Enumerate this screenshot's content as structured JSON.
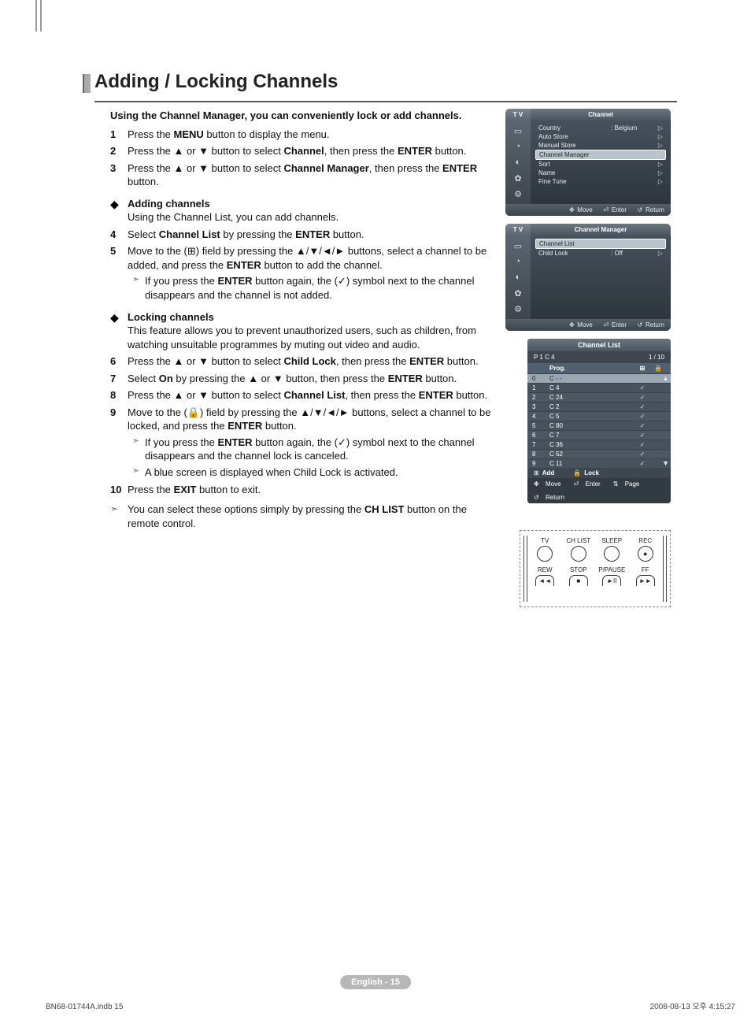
{
  "title": "Adding / Locking Channels",
  "intro": "Using the Channel Manager, you can conveniently lock or add channels.",
  "steps": {
    "s1": {
      "num": "1",
      "text": "Press the <strong>MENU</strong> button to display the menu."
    },
    "s2": {
      "num": "2",
      "text": "Press the ▲ or ▼ button to select <strong>Channel</strong>, then press the <strong>ENTER</strong> button."
    },
    "s3": {
      "num": "3",
      "text": "Press the ▲ or ▼ button to select <strong>Channel Manager</strong>, then press the <strong>ENTER</strong> button."
    }
  },
  "section_add": {
    "heading": "Adding channels",
    "body": "Using the Channel List, you can add channels."
  },
  "steps2": {
    "s4": {
      "num": "4",
      "text": "Select <strong>Channel List</strong> by pressing the <strong>ENTER</strong> button."
    },
    "s5": {
      "num": "5",
      "text": "Move to the (⊞) field by pressing the ▲/▼/◄/► buttons, select a channel to be added, and press the <strong>ENTER</strong> button to add the channel.",
      "sub1": "If you press the <strong>ENTER</strong> button again, the (✓) symbol next to the channel disappears and the channel is not added."
    }
  },
  "section_lock": {
    "heading": "Locking channels",
    "body": "This feature allows you to prevent unauthorized users, such as children, from watching unsuitable programmes by muting out video and audio."
  },
  "steps3": {
    "s6": {
      "num": "6",
      "text": "Press the ▲ or ▼ button to select <strong>Child Lock</strong>, then press the <strong>ENTER</strong> button."
    },
    "s7": {
      "num": "7",
      "text": "Select <strong>On</strong> by pressing the ▲ or ▼ button, then press the <strong>ENTER</strong> button."
    },
    "s8": {
      "num": "8",
      "text": "Press the ▲ or ▼ button to select <strong>Channel List</strong>, then press the <strong>ENTER</strong> button."
    },
    "s9": {
      "num": "9",
      "text": "Move to the (🔒) field by pressing the ▲/▼/◄/► buttons, select a channel to be locked, and press the <strong>ENTER</strong> button.",
      "sub1": "If you press the <strong>ENTER</strong> button again, the (✓) symbol next to the channel disappears and the channel lock is canceled.",
      "sub2": "A blue screen is displayed when Child Lock is activated."
    },
    "s10": {
      "num": "10",
      "text": "Press the <strong>EXIT</strong> button to exit."
    }
  },
  "tip": "You can select these options simply by pressing the <strong>CH LIST</strong> button on the remote control.",
  "osd1": {
    "tv": "T V",
    "title": "Channel",
    "rows": [
      {
        "k": "Country",
        "v": ": Belgium",
        "ar": "▷"
      },
      {
        "k": "Auto Store",
        "v": "",
        "ar": "▷"
      },
      {
        "k": "Manual Store",
        "v": "",
        "ar": "▷"
      },
      {
        "k": "Channel Manager",
        "v": "",
        "ar": "▷",
        "sel": true
      },
      {
        "k": "Sort",
        "v": "",
        "ar": "▷"
      },
      {
        "k": "Name",
        "v": "",
        "ar": "▷"
      },
      {
        "k": "Fine Tune",
        "v": "",
        "ar": "▷"
      }
    ],
    "foot": {
      "move": "Move",
      "enter": "Enter",
      "return": "Return"
    }
  },
  "osd2": {
    "tv": "T V",
    "title": "Channel Manager",
    "rows": [
      {
        "k": "Channel List",
        "v": "",
        "ar": "",
        "sel": true
      },
      {
        "k": "Child Lock",
        "v": ": Off",
        "ar": "▷"
      }
    ],
    "foot": {
      "move": "Move",
      "enter": "Enter",
      "return": "Return"
    }
  },
  "clp": {
    "title": "Channel List",
    "sub_left": "P 1   C 4",
    "sub_right": "1 / 10",
    "head": {
      "prog": "Prog.",
      "add_icon": "⊞",
      "lock_icon": "🔒"
    },
    "rows": [
      {
        "n": "0",
        "name": "C - -",
        "chk": "",
        "sel": true
      },
      {
        "n": "1",
        "name": "C 4",
        "chk": "✓"
      },
      {
        "n": "2",
        "name": "C 24",
        "chk": "✓"
      },
      {
        "n": "3",
        "name": "C 2",
        "chk": "✓"
      },
      {
        "n": "4",
        "name": "C 5",
        "chk": "✓"
      },
      {
        "n": "5",
        "name": "C 80",
        "chk": "✓"
      },
      {
        "n": "6",
        "name": "C 7",
        "chk": "✓"
      },
      {
        "n": "7",
        "name": "C 36",
        "chk": "✓"
      },
      {
        "n": "8",
        "name": "C 52",
        "chk": "✓"
      },
      {
        "n": "9",
        "name": "C 11",
        "chk": "✓"
      }
    ],
    "foot1": {
      "add": "Add",
      "lock": "Lock"
    },
    "foot2": {
      "move": "Move",
      "enter": "Enter",
      "page": "Page",
      "return": "Return"
    }
  },
  "remote": {
    "row1": [
      {
        "label": "TV",
        "glyph": ""
      },
      {
        "label": "CH LIST",
        "glyph": ""
      },
      {
        "label": "SLEEP",
        "glyph": ""
      },
      {
        "label": "REC",
        "glyph": "●"
      }
    ],
    "row2": [
      {
        "label": "REW",
        "glyph": "◄◄"
      },
      {
        "label": "STOP",
        "glyph": "■"
      },
      {
        "label": "P/PAUSE",
        "glyph": "►II"
      },
      {
        "label": "FF",
        "glyph": "►►"
      }
    ]
  },
  "page_tag": "English - 15",
  "footer_left": "BN68-01744A.indb   15",
  "footer_right": "2008-08-13   오후 4:15:27",
  "osd_icons": [
    "▭",
    "◔",
    "◐",
    "✿",
    "⚙"
  ]
}
